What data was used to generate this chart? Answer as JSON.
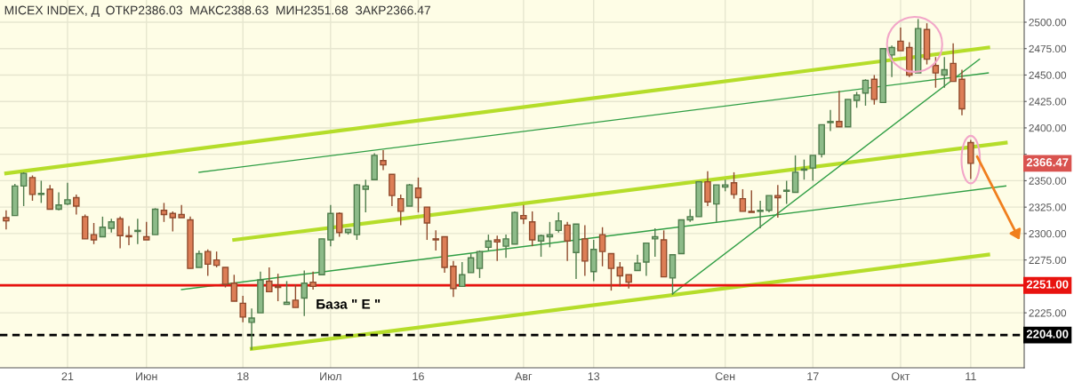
{
  "chart_data": {
    "type": "candlestick",
    "title": "MICEX INDEX, Д",
    "subtitle": "ОТКР2386.03  МАКС2388.63  МИН2351.68  ЗАКР2366.47",
    "annotations": [
      "База \" Е \"",
      "2366.47"
    ],
    "categories": [
      null,
      null,
      null,
      null,
      null,
      null,
      null,
      "21",
      null,
      null,
      null,
      null,
      null,
      null,
      null,
      null,
      "Июн",
      null,
      null,
      null,
      null,
      null,
      null,
      null,
      null,
      null,
      null,
      "18",
      null,
      null,
      null,
      null,
      null,
      null,
      null,
      null,
      null,
      "Июл",
      null,
      null,
      null,
      null,
      null,
      null,
      null,
      null,
      null,
      "16",
      null,
      null,
      null,
      null,
      null,
      null,
      null,
      null,
      null,
      null,
      null,
      "Авг",
      null,
      null,
      null,
      null,
      null,
      null,
      null,
      "13",
      null,
      null,
      null,
      null,
      null,
      null,
      null,
      null,
      null,
      null,
      null,
      null,
      null,
      null,
      "Сен",
      null,
      null,
      null,
      null,
      null,
      null,
      null,
      null,
      null,
      "17",
      null,
      null,
      null,
      null,
      null,
      null,
      null,
      null,
      null,
      "Окт",
      null,
      null,
      null,
      null,
      null,
      null,
      null,
      "11",
      null,
      null,
      null,
      null,
      null,
      null
    ],
    "ohlc": [
      [
        2315,
        2322,
        2304,
        2312
      ],
      [
        2317,
        2347,
        2317,
        2345
      ],
      [
        2345,
        2358,
        2326,
        2357
      ],
      [
        2353,
        2355,
        2331,
        2337
      ],
      [
        2337,
        2350,
        2329,
        2338
      ],
      [
        2342,
        2346,
        2323,
        2323
      ],
      [
        2323,
        2339,
        2322,
        2327
      ],
      [
        2328,
        2348,
        2327,
        2332
      ],
      [
        2334,
        2337,
        2318,
        2326
      ],
      [
        2316,
        2318,
        2295,
        2295
      ],
      [
        2299,
        2310,
        2290,
        2294
      ],
      [
        2297,
        2316,
        2297,
        2306
      ],
      [
        2305,
        2314,
        2301,
        2311
      ],
      [
        2314,
        2316,
        2286,
        2298
      ],
      [
        2298,
        2307,
        2289,
        2297
      ],
      [
        2302,
        2314,
        2290,
        2303
      ],
      [
        2297,
        2311,
        2294,
        2294
      ],
      [
        2299,
        2324,
        2299,
        2323
      ],
      [
        2322,
        2329,
        2311,
        2318
      ],
      [
        2319,
        2321,
        2302,
        2315
      ],
      [
        2318,
        2327,
        2315,
        2315
      ],
      [
        2313,
        2316,
        2267,
        2267
      ],
      [
        2268,
        2284,
        2268,
        2281
      ],
      [
        2283,
        2285,
        2260,
        2271
      ],
      [
        2275,
        2283,
        2268,
        2270
      ],
      [
        2268,
        2268,
        2249,
        2252
      ],
      [
        2253,
        2261,
        2236,
        2236
      ],
      [
        2234,
        2241,
        2216,
        2221
      ],
      [
        2216,
        2229,
        2190,
        2220
      ],
      [
        2225,
        2264,
        2225,
        2256
      ],
      [
        2255,
        2268,
        2245,
        2245
      ],
      [
        2250,
        2262,
        2236,
        2249
      ],
      [
        2233,
        2255,
        2233,
        2235
      ],
      [
        2237,
        2252,
        2230,
        2230
      ],
      [
        2239,
        2265,
        2222,
        2253
      ],
      [
        2254,
        2264,
        2247,
        2250
      ],
      [
        2261,
        2295,
        2261,
        2295
      ],
      [
        2294,
        2327,
        2288,
        2319
      ],
      [
        2319,
        2320,
        2297,
        2301
      ],
      [
        2301,
        2304,
        2299,
        2304
      ],
      [
        2299,
        2347,
        2294,
        2346
      ],
      [
        2342,
        2351,
        2320,
        2345
      ],
      [
        2351,
        2376,
        2351,
        2374
      ],
      [
        2369,
        2379,
        2360,
        2365
      ],
      [
        2356,
        2356,
        2326,
        2336
      ],
      [
        2333,
        2337,
        2308,
        2321
      ],
      [
        2326,
        2347,
        2326,
        2346
      ],
      [
        2343,
        2353,
        2320,
        2334
      ],
      [
        2325,
        2325,
        2294,
        2310
      ],
      [
        2295,
        2303,
        2284,
        2294
      ],
      [
        2297,
        2297,
        2263,
        2268
      ],
      [
        2269,
        2274,
        2240,
        2248
      ],
      [
        2250,
        2273,
        2250,
        2261
      ],
      [
        2263,
        2281,
        2263,
        2277
      ],
      [
        2267,
        2284,
        2258,
        2283
      ],
      [
        2287,
        2299,
        2284,
        2293
      ],
      [
        2294,
        2298,
        2274,
        2292
      ],
      [
        2288,
        2299,
        2277,
        2295
      ],
      [
        2290,
        2321,
        2290,
        2320
      ],
      [
        2317,
        2327,
        2309,
        2314
      ],
      [
        2311,
        2321,
        2288,
        2294
      ],
      [
        2293,
        2299,
        2278,
        2298
      ],
      [
        2297,
        2311,
        2287,
        2299
      ],
      [
        2303,
        2320,
        2301,
        2312
      ],
      [
        2308,
        2311,
        2274,
        2293
      ],
      [
        2282,
        2309,
        2257,
        2309
      ],
      [
        2295,
        2308,
        2260,
        2274
      ],
      [
        2264,
        2294,
        2255,
        2285
      ],
      [
        2299,
        2306,
        2269,
        2283
      ],
      [
        2281,
        2281,
        2246,
        2267
      ],
      [
        2268,
        2273,
        2250,
        2260
      ],
      [
        2261,
        2261,
        2248,
        2254
      ],
      [
        2265,
        2280,
        2265,
        2272
      ],
      [
        2273,
        2291,
        2260,
        2291
      ],
      [
        2295,
        2305,
        2278,
        2297
      ],
      [
        2294,
        2303,
        2259,
        2259
      ],
      [
        2258,
        2280,
        2242,
        2280
      ],
      [
        2281,
        2313,
        2281,
        2313
      ],
      [
        2313,
        2323,
        2311,
        2316
      ],
      [
        2316,
        2349,
        2316,
        2349
      ],
      [
        2349,
        2359,
        2326,
        2330
      ],
      [
        2328,
        2346,
        2311,
        2346
      ],
      [
        2344,
        2351,
        2340,
        2346
      ],
      [
        2348,
        2358,
        2333,
        2337
      ],
      [
        2333,
        2342,
        2321,
        2321
      ],
      [
        2321,
        2341,
        2320,
        2320
      ],
      [
        2321,
        2331,
        2305,
        2322
      ],
      [
        2322,
        2336,
        2320,
        2336
      ],
      [
        2336,
        2346,
        2315,
        2334
      ],
      [
        2340,
        2350,
        2328,
        2341
      ],
      [
        2339,
        2374,
        2339,
        2358
      ],
      [
        2360,
        2370,
        2351,
        2361
      ],
      [
        2362,
        2374,
        2350,
        2374
      ],
      [
        2375,
        2403,
        2372,
        2403
      ],
      [
        2405,
        2417,
        2397,
        2406
      ],
      [
        2406,
        2435,
        2401,
        2401
      ],
      [
        2401,
        2427,
        2401,
        2427
      ],
      [
        2426,
        2434,
        2419,
        2431
      ],
      [
        2433,
        2446,
        2421,
        2445
      ],
      [
        2446,
        2450,
        2422,
        2427
      ],
      [
        2424,
        2475,
        2424,
        2475
      ],
      [
        2469,
        2478,
        2448,
        2476
      ],
      [
        2482,
        2495,
        2473,
        2473
      ],
      [
        2476,
        2481,
        2448,
        2450
      ],
      [
        2452,
        2503,
        2452,
        2494
      ],
      [
        2493,
        2499,
        2460,
        2465
      ],
      [
        2459,
        2467,
        2438,
        2452
      ],
      [
        2450,
        2467,
        2438,
        2455
      ],
      [
        2461,
        2480,
        2444,
        2444
      ],
      [
        2446,
        2455,
        2412,
        2418
      ],
      [
        2386.03,
        2388.63,
        2351.68,
        2366.47
      ],
      null,
      null,
      null,
      null,
      null,
      null
    ],
    "series": [
      {
        "type": "line",
        "color": "#b5dd2a",
        "values": [
          2357,
          null,
          null,
          null,
          null,
          null,
          null,
          null,
          null,
          null,
          null,
          null,
          null,
          null,
          null,
          null,
          null,
          null,
          null,
          null,
          null,
          null,
          null,
          null,
          null,
          null,
          null,
          null,
          null,
          null,
          null,
          null,
          null,
          null,
          null,
          null,
          null,
          null,
          null,
          null,
          null,
          null,
          null,
          null,
          null,
          null,
          null,
          null,
          null,
          null,
          null,
          null,
          null,
          null,
          null,
          null,
          null,
          null,
          null,
          null,
          null,
          null,
          null,
          null,
          null,
          null,
          null,
          null,
          null,
          null,
          null,
          null,
          null,
          null,
          null,
          null,
          null,
          null,
          null,
          null,
          null,
          null,
          null,
          null,
          null,
          null,
          null,
          null,
          null,
          null,
          null,
          null,
          null,
          null,
          null,
          null,
          null,
          null,
          null,
          null,
          null,
          null,
          null,
          null,
          null,
          null,
          null,
          null,
          null,
          null,
          null,
          null,
          2476,
          null,
          null,
          null,
          null
        ]
      },
      {
        "type": "line",
        "color": "#b5dd2a",
        "values": [
          null,
          null,
          null,
          null,
          null,
          null,
          null,
          null,
          null,
          null,
          null,
          null,
          null,
          null,
          null,
          null,
          null,
          null,
          null,
          null,
          null,
          null,
          null,
          null,
          null,
          null,
          2294,
          null,
          null,
          null,
          null,
          null,
          null,
          null,
          null,
          null,
          null,
          null,
          null,
          null,
          null,
          null,
          null,
          null,
          null,
          null,
          null,
          null,
          null,
          null,
          null,
          null,
          null,
          null,
          null,
          null,
          null,
          null,
          null,
          null,
          null,
          null,
          null,
          null,
          null,
          null,
          null,
          null,
          null,
          null,
          null,
          null,
          null,
          null,
          null,
          null,
          null,
          null,
          null,
          null,
          null,
          null,
          null,
          null,
          null,
          null,
          null,
          null,
          null,
          null,
          null,
          null,
          null,
          null,
          null,
          null,
          null,
          null,
          null,
          null,
          null,
          null,
          null,
          null,
          null,
          null,
          null,
          null,
          null,
          null,
          null,
          null,
          null,
          null,
          2386,
          null,
          null
        ]
      },
      {
        "type": "line",
        "color": "#b5dd2a",
        "values": [
          null,
          null,
          null,
          null,
          null,
          null,
          null,
          null,
          null,
          null,
          null,
          null,
          null,
          null,
          null,
          null,
          null,
          null,
          null,
          null,
          null,
          null,
          null,
          null,
          null,
          null,
          null,
          null,
          2191,
          null,
          null,
          null,
          null,
          null,
          null,
          null,
          null,
          null,
          null,
          null,
          null,
          null,
          null,
          null,
          null,
          null,
          null,
          null,
          null,
          null,
          null,
          null,
          null,
          null,
          null,
          null,
          null,
          null,
          null,
          null,
          null,
          null,
          null,
          null,
          null,
          null,
          null,
          null,
          null,
          null,
          null,
          null,
          null,
          null,
          null,
          null,
          null,
          null,
          null,
          null,
          null,
          null,
          null,
          null,
          null,
          null,
          null,
          null,
          null,
          null,
          null,
          null,
          null,
          null,
          null,
          null,
          null,
          null,
          null,
          null,
          null,
          null,
          null,
          null,
          null,
          null,
          null,
          null,
          null,
          null,
          null,
          null,
          2280,
          null,
          null,
          null,
          null
        ]
      },
      {
        "type": "line",
        "color": "#2f9e44",
        "values": [
          null,
          null,
          null,
          null,
          null,
          null,
          null,
          null,
          null,
          null,
          null,
          null,
          null,
          null,
          null,
          null,
          null,
          null,
          null,
          null,
          null,
          null,
          2358,
          null,
          null,
          null,
          null,
          null,
          null,
          null,
          null,
          null,
          null,
          null,
          null,
          null,
          null,
          null,
          null,
          null,
          null,
          null,
          null,
          null,
          null,
          null,
          null,
          null,
          null,
          null,
          null,
          null,
          null,
          null,
          null,
          null,
          null,
          null,
          null,
          null,
          null,
          null,
          null,
          null,
          null,
          null,
          null,
          null,
          null,
          null,
          null,
          null,
          null,
          null,
          null,
          null,
          null,
          null,
          null,
          null,
          null,
          null,
          null,
          null,
          null,
          null,
          null,
          null,
          null,
          null,
          null,
          null,
          null,
          null,
          null,
          null,
          null,
          null,
          null,
          null,
          null,
          null,
          null,
          null,
          null,
          null,
          null,
          null,
          null,
          null,
          null,
          null,
          2452,
          null,
          null,
          null,
          null
        ]
      },
      {
        "type": "line",
        "color": "#2f9e44",
        "values": [
          null,
          null,
          null,
          null,
          null,
          null,
          null,
          null,
          null,
          null,
          null,
          null,
          null,
          null,
          null,
          null,
          null,
          null,
          null,
          null,
          2247,
          null,
          null,
          null,
          null,
          null,
          null,
          null,
          null,
          null,
          null,
          null,
          null,
          null,
          null,
          null,
          null,
          null,
          null,
          null,
          null,
          null,
          null,
          null,
          null,
          null,
          null,
          null,
          null,
          null,
          null,
          null,
          null,
          null,
          null,
          null,
          null,
          null,
          null,
          null,
          null,
          null,
          null,
          null,
          null,
          null,
          null,
          null,
          null,
          null,
          null,
          null,
          null,
          null,
          null,
          null,
          null,
          null,
          null,
          null,
          null,
          null,
          null,
          null,
          null,
          null,
          null,
          null,
          null,
          null,
          null,
          null,
          null,
          null,
          null,
          null,
          null,
          null,
          null,
          null,
          null,
          null,
          null,
          null,
          null,
          null,
          null,
          null,
          null,
          null,
          null,
          null,
          null,
          null,
          2345,
          null,
          null
        ]
      },
      {
        "type": "line",
        "color": "#2f9e44",
        "values": [
          null,
          null,
          null,
          null,
          null,
          null,
          null,
          null,
          null,
          null,
          null,
          null,
          null,
          null,
          null,
          null,
          null,
          null,
          null,
          null,
          null,
          null,
          null,
          null,
          null,
          null,
          null,
          null,
          null,
          null,
          null,
          null,
          null,
          null,
          null,
          null,
          null,
          null,
          null,
          null,
          null,
          null,
          null,
          null,
          null,
          null,
          null,
          null,
          null,
          null,
          null,
          null,
          null,
          null,
          null,
          null,
          null,
          null,
          null,
          null,
          null,
          null,
          null,
          null,
          null,
          null,
          null,
          null,
          null,
          null,
          null,
          null,
          null,
          null,
          null,
          null,
          2243,
          null,
          null,
          null,
          null,
          null,
          null,
          null,
          null,
          null,
          null,
          null,
          null,
          null,
          null,
          null,
          null,
          null,
          null,
          null,
          null,
          null,
          null,
          null,
          null,
          null,
          null,
          null,
          null,
          null,
          null,
          null,
          null,
          null,
          null,
          2465,
          null,
          null,
          null,
          null,
          null
        ]
      }
    ],
    "ref_lines": [
      {
        "axis": "y",
        "value": 2251,
        "label": "2251.00",
        "color": "#e8130f",
        "line_style": "solid"
      },
      {
        "axis": "y",
        "value": 2204,
        "label": "2204.00",
        "color": "#000000",
        "line_style": "dashed"
      }
    ],
    "ylim": [
      2173,
      2521
    ],
    "yticks": [
      {
        "value": 2225,
        "label": "2225.00"
      },
      {
        "value": 2250,
        "label": null
      },
      {
        "value": 2275,
        "label": "2275.00"
      },
      {
        "value": 2300,
        "label": "2300.00"
      },
      {
        "value": 2325,
        "label": "2325.00"
      },
      {
        "value": 2350,
        "label": "2350.00"
      },
      {
        "value": 2375,
        "label": null
      },
      {
        "value": 2400,
        "label": "2400.00"
      },
      {
        "value": 2425,
        "label": "2425.00"
      },
      {
        "value": 2450,
        "label": "2450.00"
      },
      {
        "value": 2475,
        "label": "2475.00"
      },
      {
        "value": 2500,
        "label": "2500.00"
      }
    ],
    "grid": true,
    "line_style": "solid"
  }
}
